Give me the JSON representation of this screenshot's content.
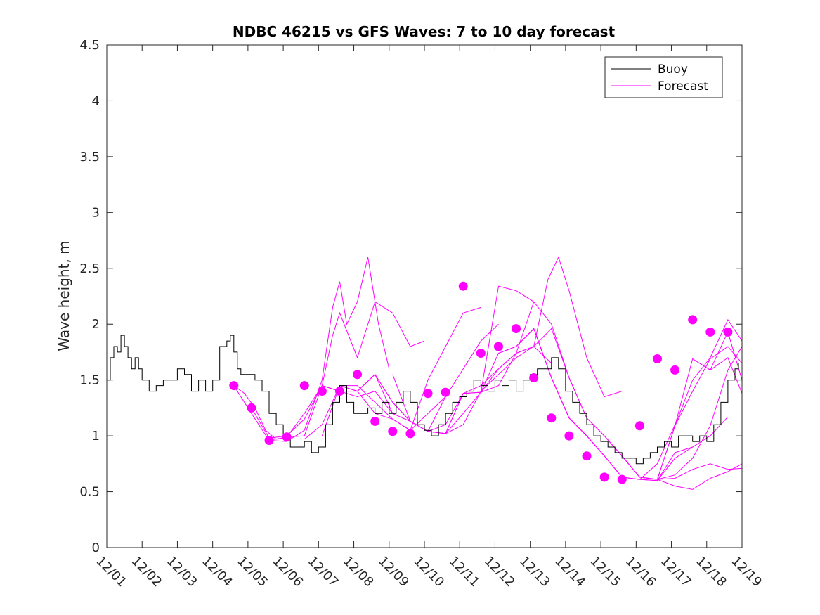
{
  "chart_data": {
    "type": "line",
    "title": "NDBC 46215 vs GFS Waves: 7 to 10 day forecast",
    "xlabel": "",
    "ylabel": "Wave height, m",
    "xlim": [
      0,
      18
    ],
    "ylim": [
      0,
      4.5
    ],
    "x_tick_labels": [
      "12/01",
      "12/02",
      "12/03",
      "12/04",
      "12/05",
      "12/06",
      "12/07",
      "12/08",
      "12/09",
      "12/10",
      "12/11",
      "12/12",
      "12/13",
      "12/14",
      "12/15",
      "12/16",
      "12/17",
      "12/18",
      "12/19"
    ],
    "y_ticks": [
      0,
      0.5,
      1,
      1.5,
      2,
      2.5,
      3,
      3.5,
      4,
      4.5
    ],
    "y_tick_labels": [
      "0",
      "0.5",
      "1",
      "1.5",
      "2",
      "2.5",
      "3",
      "3.5",
      "4",
      "4.5"
    ],
    "legend_position": "top-right",
    "colors": {
      "buoy": "#000000",
      "forecast": "#ff00ff"
    },
    "series": [
      {
        "name": "Buoy",
        "x": [
          0.0,
          0.1,
          0.2,
          0.3,
          0.4,
          0.5,
          0.6,
          0.7,
          0.8,
          0.9,
          1.0,
          1.2,
          1.4,
          1.6,
          1.8,
          2.0,
          2.2,
          2.4,
          2.6,
          2.8,
          3.0,
          3.2,
          3.4,
          3.5,
          3.6,
          3.7,
          3.8,
          4.0,
          4.2,
          4.4,
          4.6,
          4.8,
          5.0,
          5.2,
          5.4,
          5.6,
          5.8,
          6.0,
          6.2,
          6.4,
          6.6,
          6.8,
          7.0,
          7.2,
          7.4,
          7.6,
          7.8,
          8.0,
          8.2,
          8.4,
          8.6,
          8.8,
          9.0,
          9.2,
          9.4,
          9.6,
          9.8,
          10.0,
          10.2,
          10.4,
          10.6,
          10.8,
          11.0,
          11.2,
          11.4,
          11.6,
          11.8,
          12.0,
          12.2,
          12.4,
          12.6,
          12.8,
          13.0,
          13.2,
          13.4,
          13.6,
          13.8,
          14.0,
          14.2,
          14.4,
          14.6,
          14.8,
          15.0,
          15.2,
          15.4,
          15.6,
          15.8,
          16.0,
          16.2,
          16.4,
          16.6,
          16.8,
          17.0,
          17.2,
          17.4,
          17.6,
          17.8,
          17.9
        ],
        "values": [
          1.5,
          1.7,
          1.8,
          1.75,
          1.9,
          1.8,
          1.7,
          1.6,
          1.7,
          1.6,
          1.5,
          1.4,
          1.45,
          1.5,
          1.5,
          1.6,
          1.55,
          1.4,
          1.5,
          1.4,
          1.5,
          1.8,
          1.85,
          1.9,
          1.75,
          1.6,
          1.55,
          1.55,
          1.5,
          1.4,
          1.2,
          1.1,
          1.0,
          0.9,
          0.9,
          0.95,
          0.85,
          0.9,
          1.1,
          1.3,
          1.45,
          1.3,
          1.2,
          1.2,
          1.25,
          1.2,
          1.3,
          1.2,
          1.3,
          1.4,
          1.3,
          1.1,
          1.05,
          1.0,
          1.1,
          1.2,
          1.3,
          1.35,
          1.4,
          1.5,
          1.45,
          1.4,
          1.5,
          1.45,
          1.5,
          1.4,
          1.5,
          1.55,
          1.6,
          1.6,
          1.7,
          1.6,
          1.4,
          1.3,
          1.2,
          1.1,
          1.0,
          0.95,
          0.9,
          0.85,
          0.8,
          0.8,
          0.75,
          0.8,
          0.85,
          0.9,
          0.95,
          0.9,
          1.0,
          1.0,
          0.95,
          1.0,
          0.95,
          1.1,
          1.3,
          1.5,
          1.6,
          1.65
        ]
      },
      {
        "name": "Forecast",
        "runs": [
          {
            "x": [
              3.6,
              3.9,
              4.2,
              4.5,
              4.8,
              5.1
            ],
            "values": [
              1.45,
              1.38,
              1.25,
              1.05,
              0.97,
              0.98
            ]
          },
          {
            "x": [
              3.6,
              4.1,
              4.6,
              5.1,
              5.6,
              6.1,
              6.6,
              7.1,
              7.6
            ],
            "values": [
              1.45,
              1.2,
              0.96,
              0.99,
              1.2,
              1.45,
              1.4,
              1.35,
              1.4
            ]
          },
          {
            "x": [
              4.1,
              4.6,
              5.1,
              5.6,
              6.1,
              6.6,
              7.1,
              7.6,
              8.1
            ],
            "values": [
              1.25,
              0.98,
              1.0,
              1.15,
              1.45,
              1.4,
              1.4,
              1.55,
              1.2
            ]
          },
          {
            "x": [
              4.6,
              5.1,
              5.6,
              6.1,
              6.4,
              6.6,
              6.8,
              7.1,
              7.4,
              7.7,
              8.0
            ],
            "values": [
              0.96,
              0.95,
              1.05,
              1.5,
              2.15,
              2.38,
              2.0,
              2.2,
              2.6,
              2.0,
              1.6
            ]
          },
          {
            "x": [
              5.1,
              5.6,
              6.1,
              6.4,
              6.6,
              7.1,
              7.6,
              8.1,
              8.6,
              9.0
            ],
            "values": [
              0.99,
              1.0,
              1.45,
              1.9,
              2.1,
              1.7,
              2.2,
              2.1,
              1.8,
              1.85
            ]
          },
          {
            "x": [
              5.6,
              6.1,
              6.6,
              7.1,
              7.6,
              8.1,
              8.6,
              9.1,
              9.6
            ],
            "values": [
              0.97,
              1.1,
              1.45,
              1.45,
              1.3,
              1.15,
              1.05,
              1.2,
              1.35
            ]
          },
          {
            "x": [
              6.1,
              6.6,
              7.1,
              7.6,
              8.1,
              8.6,
              9.1,
              9.6,
              10.1,
              10.6
            ],
            "values": [
              1.0,
              1.45,
              1.4,
              1.2,
              1.15,
              1.05,
              1.5,
              1.8,
              2.1,
              2.15
            ]
          },
          {
            "x": [
              6.6,
              7.1,
              7.6,
              8.1,
              8.6,
              9.1,
              9.6,
              10.1,
              10.6,
              11.1
            ],
            "values": [
              1.45,
              1.4,
              1.55,
              1.3,
              1.13,
              1.04,
              1.35,
              1.6,
              1.85,
              2.0
            ]
          },
          {
            "x": [
              7.1,
              7.6,
              8.1,
              8.6,
              9.1,
              9.6,
              10.1,
              10.6,
              11.1,
              11.6,
              12.1
            ],
            "values": [
              1.4,
              1.55,
              1.3,
              1.13,
              1.04,
              1.02,
              1.38,
              1.45,
              1.6,
              1.74,
              2.2
            ]
          },
          {
            "x": [
              7.6,
              8.1,
              8.6,
              9.1,
              9.6,
              10.1,
              10.6,
              11.1,
              11.6,
              12.1,
              12.6
            ],
            "values": [
              1.4,
              1.2,
              1.13,
              1.04,
              1.02,
              1.1,
              1.4,
              1.55,
              1.7,
              1.8,
              1.65
            ]
          },
          {
            "x": [
              8.1,
              8.6,
              9.1,
              9.6,
              10.1,
              10.6,
              11.1,
              11.6,
              12.1,
              12.6,
              13.1
            ],
            "values": [
              1.55,
              1.13,
              1.04,
              1.02,
              1.2,
              1.39,
              1.45,
              1.74,
              1.8,
              1.96,
              1.52
            ]
          },
          {
            "x": [
              8.6,
              9.1,
              9.6,
              10.1,
              10.6,
              11.1,
              11.6,
              12.1,
              12.6,
              13.1,
              13.6
            ],
            "values": [
              1.13,
              1.04,
              1.02,
              1.38,
              1.39,
              2.34,
              2.3,
              2.2,
              2.0,
              1.52,
              1.16
            ]
          },
          {
            "x": [
              9.1,
              9.6,
              10.1,
              10.6,
              11.1,
              11.6,
              12.1,
              12.6,
              13.1,
              13.6,
              14.1
            ],
            "values": [
              1.04,
              1.1,
              1.38,
              1.39,
              1.74,
              1.8,
              1.96,
              1.52,
              1.16,
              1.0,
              0.82
            ]
          },
          {
            "x": [
              10.6,
              11.1,
              11.6,
              12.1,
              12.5,
              12.8,
              13.1,
              13.6,
              14.1,
              14.6
            ],
            "values": [
              1.39,
              1.6,
              1.74,
              1.8,
              2.4,
              2.6,
              2.3,
              1.7,
              1.35,
              1.4
            ]
          },
          {
            "x": [
              11.1,
              11.6,
              12.1,
              12.6,
              13.1,
              13.6,
              14.1,
              14.6,
              15.1,
              15.6,
              16.1
            ],
            "values": [
              1.74,
              1.8,
              1.96,
              1.52,
              1.16,
              1.0,
              0.82,
              0.63,
              0.61,
              0.75,
              1.1
            ]
          },
          {
            "x": [
              11.6,
              12.1,
              12.6,
              13.1,
              13.6,
              14.1,
              14.6,
              15.1,
              15.6,
              16.1,
              16.6
            ],
            "values": [
              1.8,
              1.96,
              1.52,
              1.16,
              1.0,
              0.82,
              0.63,
              0.61,
              0.6,
              0.85,
              0.9
            ]
          },
          {
            "x": [
              12.1,
              12.6,
              13.1,
              13.6,
              14.1,
              14.6,
              15.1,
              15.6,
              16.1,
              16.6,
              17.1,
              17.6
            ],
            "values": [
              1.96,
              1.52,
              1.16,
              1.0,
              0.82,
              0.63,
              0.61,
              0.6,
              0.8,
              0.9,
              1.0,
              1.17
            ]
          },
          {
            "x": [
              13.1,
              13.6,
              14.1,
              14.6,
              15.1,
              15.6,
              16.1,
              16.6,
              17.1,
              17.6,
              18.0
            ],
            "values": [
              1.52,
              1.16,
              1.0,
              0.82,
              0.63,
              0.61,
              0.65,
              0.8,
              1.09,
              1.59,
              1.8
            ]
          },
          {
            "x": [
              13.6,
              14.1,
              14.6,
              15.1,
              15.6,
              16.1,
              16.6,
              17.1,
              17.6,
              18.0
            ],
            "values": [
              1.16,
              1.0,
              0.82,
              0.63,
              0.61,
              1.09,
              1.4,
              1.69,
              1.8,
              1.65
            ]
          },
          {
            "x": [
              14.1,
              14.6,
              15.1,
              15.6,
              16.1,
              16.6,
              17.1,
              17.6,
              18.0
            ],
            "values": [
              1.0,
              0.82,
              0.63,
              0.61,
              0.62,
              0.7,
              0.75,
              0.7,
              0.71
            ]
          },
          {
            "x": [
              14.6,
              15.1,
              15.6,
              16.1,
              16.6,
              17.1,
              17.6,
              18.0
            ],
            "values": [
              0.82,
              0.63,
              0.61,
              0.55,
              0.52,
              0.62,
              0.68,
              0.75
            ]
          },
          {
            "x": [
              15.6,
              16.1,
              16.6,
              17.1,
              17.6,
              18.0
            ],
            "values": [
              0.61,
              1.09,
              1.5,
              1.7,
              2.04,
              1.85
            ]
          },
          {
            "x": [
              16.1,
              16.6,
              17.1,
              17.6,
              18.0
            ],
            "values": [
              1.09,
              1.69,
              1.59,
              1.93,
              1.5
            ]
          },
          {
            "x": [
              16.6,
              17.1,
              17.6,
              18.0
            ],
            "values": [
              1.69,
              1.59,
              1.7,
              1.38
            ]
          }
        ],
        "markers": {
          "x": [
            3.6,
            4.1,
            4.6,
            5.1,
            5.6,
            6.1,
            6.6,
            7.1,
            7.6,
            8.1,
            8.6,
            9.1,
            9.6,
            10.1,
            10.6,
            11.1,
            11.6,
            12.1,
            12.6,
            13.1,
            13.6,
            14.1,
            14.6,
            15.1,
            15.6,
            16.1,
            16.6,
            17.1,
            17.6
          ],
          "values": [
            1.45,
            1.25,
            0.96,
            0.99,
            1.45,
            1.4,
            1.4,
            1.55,
            1.13,
            1.04,
            1.02,
            1.38,
            1.39,
            2.34,
            1.74,
            1.8,
            1.96,
            1.52,
            1.16,
            1.0,
            0.82,
            0.63,
            0.61,
            1.09,
            1.69,
            1.59,
            2.04,
            1.93,
            1.93
          ]
        }
      }
    ]
  }
}
